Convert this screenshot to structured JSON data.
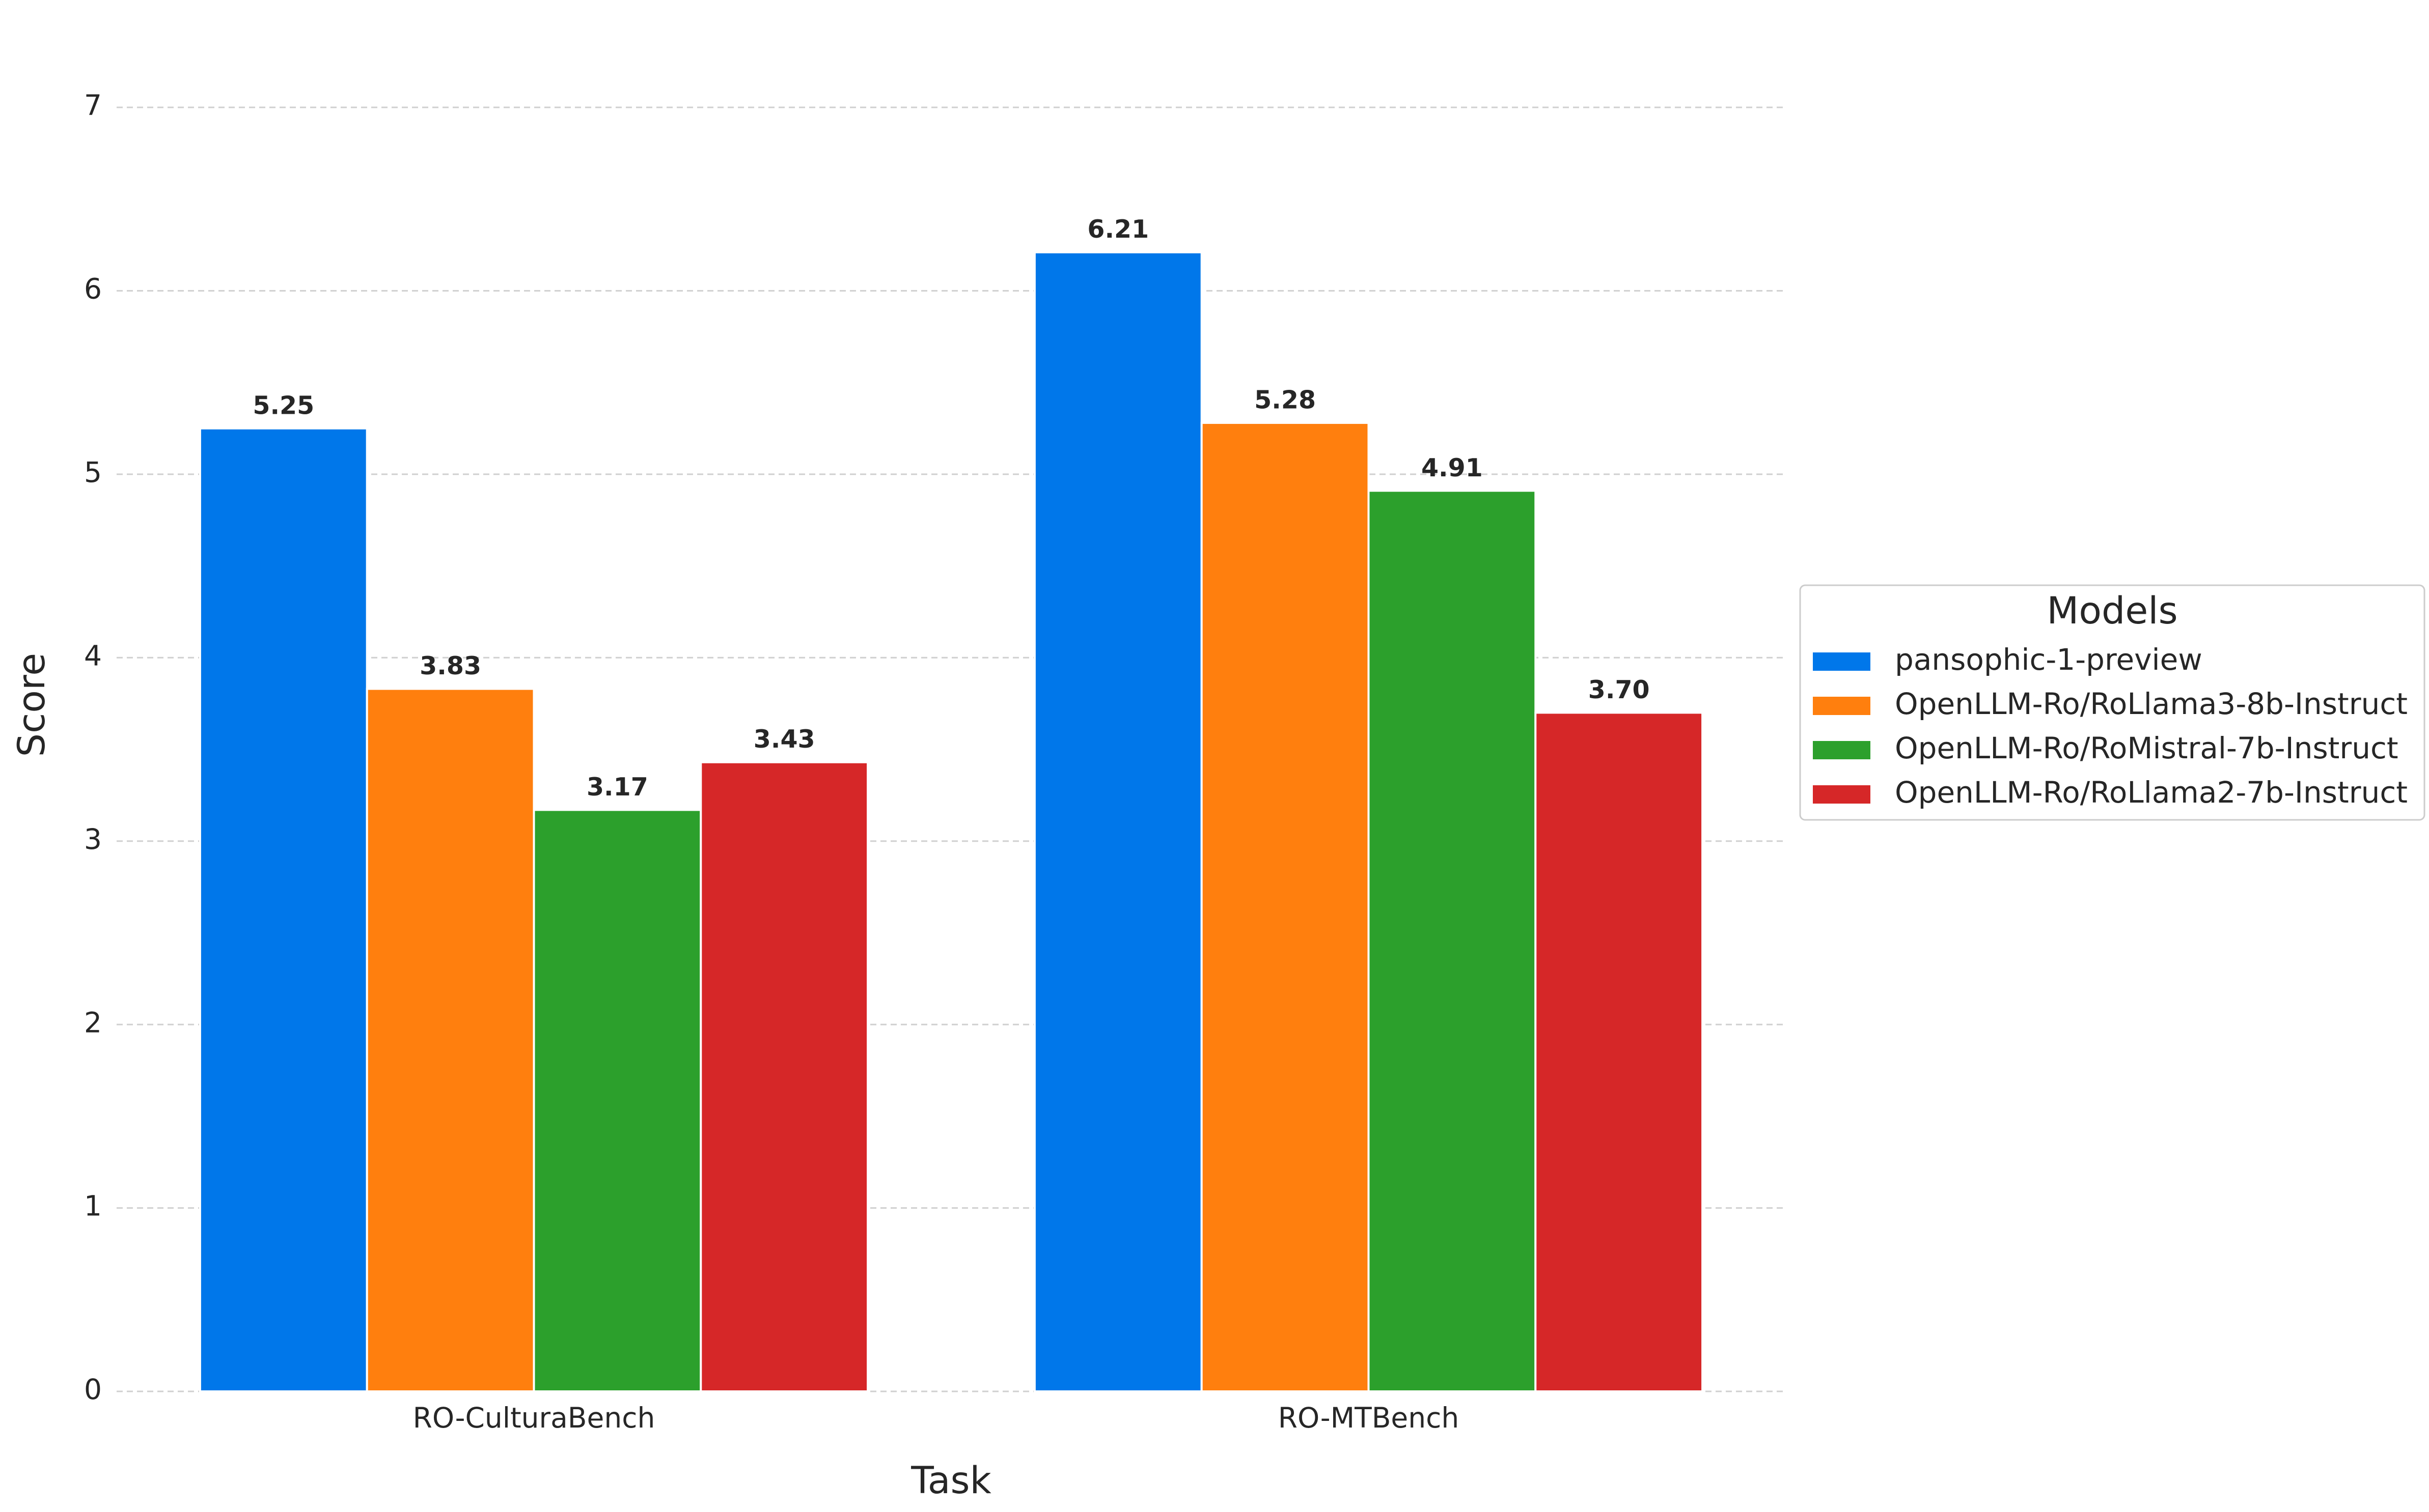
{
  "chart_data": {
    "type": "bar",
    "x_label": "Task",
    "y_label": "Score",
    "categories": [
      "RO-CulturaBench",
      "RO-MTBench"
    ],
    "series": [
      {
        "name": "pansophic-1-preview",
        "color": "#0077ea",
        "values": [
          5.25,
          6.21
        ],
        "value_labels": [
          "5.25",
          "6.21"
        ]
      },
      {
        "name": "OpenLLM-Ro/RoLlama3-8b-Instruct",
        "color": "#ff7f0e",
        "values": [
          3.83,
          5.28
        ],
        "value_labels": [
          "3.83",
          "5.28"
        ]
      },
      {
        "name": "OpenLLM-Ro/RoMistral-7b-Instruct",
        "color": "#2ca02c",
        "values": [
          3.17,
          4.91
        ],
        "value_labels": [
          "3.17",
          "4.91"
        ]
      },
      {
        "name": "OpenLLM-Ro/RoLlama2-7b-Instruct",
        "color": "#d62728",
        "values": [
          3.43,
          3.7
        ],
        "value_labels": [
          "3.43",
          "3.70"
        ]
      }
    ],
    "legend_title": "Models",
    "legend": "right",
    "ylim": [
      0,
      7
    ],
    "yticks": [
      0,
      1,
      2,
      3,
      4,
      5,
      6,
      7
    ],
    "grid": true
  }
}
